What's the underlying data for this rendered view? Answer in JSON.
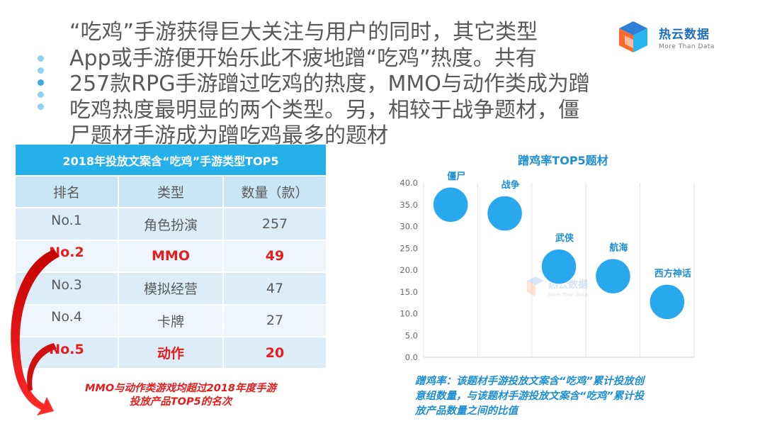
{
  "headline": {
    "lines": [
      "“吃鸡”手游获得巨大关注与用户的同时，其它类型",
      "App或手游便开始乐此不疲地蹭“吃鸡”热度。共有",
      "257款RPG手游蹭过吃鸡的热度，MMO与动作类成为蹭",
      "吃鸡热度最明显的两个类型。另，相较于战争题材，僵",
      "尸题材手游成为蹭吃鸡最多的题材"
    ]
  },
  "logo": {
    "name": "热云数据",
    "tagline": "More Than Data",
    "icon": "cube-logo-icon"
  },
  "table": {
    "title": "2018年投放文案含“吃鸡”手游类型TOP5",
    "headers": [
      "排名",
      "类型",
      "数量（款）"
    ],
    "rows": [
      {
        "rank": "No.1",
        "type": "角色扮演",
        "count": "257",
        "highlight": false
      },
      {
        "rank": "No.2",
        "type": "MMO",
        "count": "49",
        "highlight": true
      },
      {
        "rank": "No.3",
        "type": "模拟经营",
        "count": "47",
        "highlight": false
      },
      {
        "rank": "No.4",
        "type": "卡牌",
        "count": "27",
        "highlight": false
      },
      {
        "rank": "No.5",
        "type": "动作",
        "count": "20",
        "highlight": true
      }
    ],
    "colors": {
      "title_bg": "#26b0ea",
      "highlight": "#e81c1c"
    }
  },
  "note_left": {
    "lines": [
      "MMO与动作类游戏均超过2018年度手游",
      "投放产品TOP5的名次"
    ]
  },
  "chart_data": {
    "type": "scatter",
    "title": "蹭鸡率TOP5题材",
    "xlabel": "",
    "ylabel": "",
    "ylim": [
      0,
      40
    ],
    "yticks": [
      "0.0",
      "5.0",
      "10.0",
      "15.0",
      "20.0",
      "25.0",
      "30.0",
      "35.0",
      "40.0"
    ],
    "grid": "vertical",
    "color": "#29a8ee",
    "points": [
      {
        "label": "僵尸",
        "x": 1,
        "y": 35.0
      },
      {
        "label": "战争",
        "x": 2,
        "y": 33.0
      },
      {
        "label": "武侠",
        "x": 3,
        "y": 20.8
      },
      {
        "label": "航海",
        "x": 4,
        "y": 18.6
      },
      {
        "label": "西方神话",
        "x": 5,
        "y": 12.7
      }
    ],
    "watermark": {
      "name": "热云数据",
      "tagline": "More Than Data"
    }
  },
  "note_right": {
    "lines": [
      "蹭鸡率：该题材手游投放文案含“吃鸡”累计投放创",
      "意组数量，与该题材手游投放文案含“吃鸡”累计投",
      "放产品数量之间的比值"
    ]
  }
}
